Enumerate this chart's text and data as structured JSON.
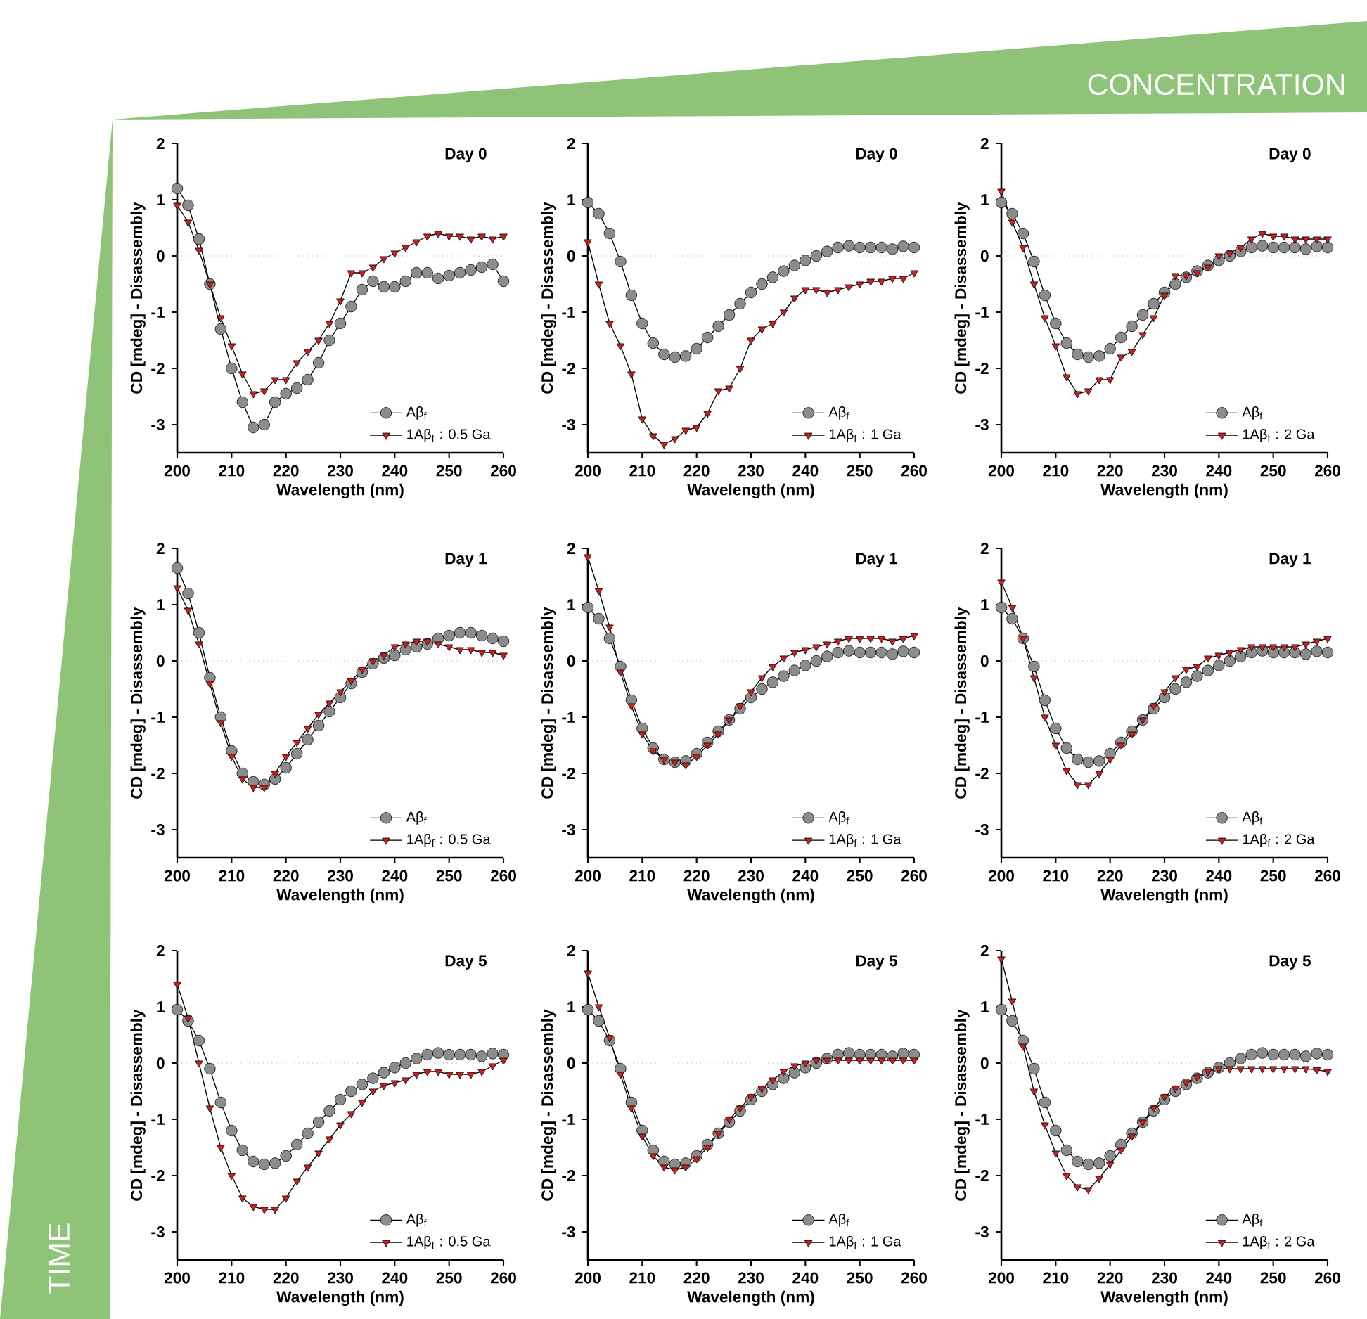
{
  "chart_data": [
    {
      "type": "line",
      "title": "Day 0",
      "xlabel": "Wavelength (nm)",
      "ylabel": "CD [mdeg] - Disassembly",
      "x": [
        200,
        202,
        204,
        206,
        208,
        210,
        212,
        214,
        216,
        218,
        220,
        222,
        224,
        226,
        228,
        230,
        232,
        234,
        236,
        238,
        240,
        242,
        244,
        246,
        248,
        250,
        252,
        254,
        256,
        258,
        260
      ],
      "xlim": [
        200,
        260
      ],
      "xticks": [
        200,
        210,
        220,
        230,
        240,
        250,
        260
      ],
      "ylim": [
        -3.5,
        2
      ],
      "yticks": [
        -3,
        -2,
        -1,
        0,
        1,
        2
      ],
      "legend": "bottom right",
      "ref_lines": [
        {
          "axis": "y",
          "value": 0,
          "color": "#b0b0b0",
          "line_style": "dotted"
        }
      ],
      "series": [
        {
          "name": "Aβ$_{f}$",
          "color": "#8c8c8c",
          "marker": "circle",
          "values": [
            1.2,
            0.9,
            0.3,
            -0.5,
            -1.3,
            -2.0,
            -2.6,
            -3.05,
            -3.0,
            -2.6,
            -2.45,
            -2.35,
            -2.2,
            -1.9,
            -1.5,
            -1.2,
            -0.9,
            -0.6,
            -0.45,
            -0.55,
            -0.55,
            -0.45,
            -0.3,
            -0.3,
            -0.4,
            -0.35,
            -0.3,
            -0.25,
            -0.2,
            -0.15,
            -0.45
          ]
        },
        {
          "name": "1Aβ$_{f}$ : 0.5 Ga",
          "color": "#cc1f1f",
          "marker": "triangle",
          "values": [
            0.9,
            0.6,
            0.1,
            -0.5,
            -1.1,
            -1.6,
            -2.1,
            -2.45,
            -2.4,
            -2.2,
            -2.2,
            -1.9,
            -1.7,
            -1.5,
            -1.2,
            -0.8,
            -0.3,
            -0.3,
            -0.2,
            -0.05,
            0.05,
            0.15,
            0.25,
            0.35,
            0.4,
            0.35,
            0.35,
            0.3,
            0.35,
            0.3,
            0.35
          ]
        }
      ]
    },
    {
      "type": "line",
      "title": "Day 0",
      "xlabel": "Wavelength (nm)",
      "ylabel": "CD [mdeg] - Disassembly",
      "x": [
        200,
        202,
        204,
        206,
        208,
        210,
        212,
        214,
        216,
        218,
        220,
        222,
        224,
        226,
        228,
        230,
        232,
        234,
        236,
        238,
        240,
        242,
        244,
        246,
        248,
        250,
        252,
        254,
        256,
        258,
        260
      ],
      "xlim": [
        200,
        260
      ],
      "xticks": [
        200,
        210,
        220,
        230,
        240,
        250,
        260
      ],
      "ylim": [
        -3.5,
        2
      ],
      "yticks": [
        -3,
        -2,
        -1,
        0,
        1,
        2
      ],
      "legend": "bottom right",
      "ref_lines": [
        {
          "axis": "y",
          "value": 0,
          "color": "#b0b0b0",
          "line_style": "dotted"
        }
      ],
      "series": [
        {
          "name": "Aβ$_{f}$",
          "color": "#8c8c8c",
          "marker": "circle",
          "values": [
            0.95,
            0.75,
            0.4,
            -0.1,
            -0.7,
            -1.2,
            -1.55,
            -1.75,
            -1.8,
            -1.78,
            -1.65,
            -1.45,
            -1.25,
            -1.05,
            -0.85,
            -0.65,
            -0.5,
            -0.38,
            -0.27,
            -0.17,
            -0.08,
            0.0,
            0.08,
            0.15,
            0.18,
            0.15,
            0.15,
            0.15,
            0.12,
            0.17,
            0.15
          ]
        },
        {
          "name": "1Aβ$_{f}$ : 1 Ga",
          "color": "#cc1f1f",
          "marker": "triangle",
          "values": [
            0.25,
            -0.5,
            -1.2,
            -1.6,
            -2.1,
            -2.9,
            -3.2,
            -3.35,
            -3.25,
            -3.1,
            -3.05,
            -2.8,
            -2.4,
            -2.35,
            -2.0,
            -1.5,
            -1.3,
            -1.2,
            -1.0,
            -0.75,
            -0.6,
            -0.6,
            -0.65,
            -0.6,
            -0.55,
            -0.5,
            -0.45,
            -0.45,
            -0.4,
            -0.4,
            -0.3
          ]
        }
      ]
    },
    {
      "type": "line",
      "title": "Day 0",
      "xlabel": "Wavelength (nm)",
      "ylabel": "CD [mdeg] - Disassembly",
      "x": [
        200,
        202,
        204,
        206,
        208,
        210,
        212,
        214,
        216,
        218,
        220,
        222,
        224,
        226,
        228,
        230,
        232,
        234,
        236,
        238,
        240,
        242,
        244,
        246,
        248,
        250,
        252,
        254,
        256,
        258,
        260
      ],
      "xlim": [
        200,
        260
      ],
      "xticks": [
        200,
        210,
        220,
        230,
        240,
        250,
        260
      ],
      "ylim": [
        -3.5,
        2
      ],
      "yticks": [
        -3,
        -2,
        -1,
        0,
        1,
        2
      ],
      "legend": "bottom right",
      "ref_lines": [
        {
          "axis": "y",
          "value": 0,
          "color": "#b0b0b0",
          "line_style": "dotted"
        }
      ],
      "series": [
        {
          "name": "Aβ$_{f}$",
          "color": "#8c8c8c",
          "marker": "circle",
          "values": [
            0.95,
            0.75,
            0.4,
            -0.1,
            -0.7,
            -1.2,
            -1.55,
            -1.75,
            -1.8,
            -1.78,
            -1.65,
            -1.45,
            -1.25,
            -1.05,
            -0.85,
            -0.65,
            -0.5,
            -0.38,
            -0.27,
            -0.17,
            -0.08,
            0.0,
            0.08,
            0.15,
            0.18,
            0.15,
            0.15,
            0.15,
            0.12,
            0.17,
            0.15
          ]
        },
        {
          "name": "1Aβ$_{f}$ : 2 Ga",
          "color": "#cc1f1f",
          "marker": "triangle",
          "values": [
            1.15,
            0.6,
            0.15,
            -0.5,
            -1.1,
            -1.6,
            -2.15,
            -2.45,
            -2.4,
            -2.2,
            -2.2,
            -1.8,
            -1.7,
            -1.4,
            -1.1,
            -0.7,
            -0.35,
            -0.35,
            -0.3,
            -0.2,
            0.0,
            0.05,
            0.15,
            0.3,
            0.4,
            0.35,
            0.35,
            0.3,
            0.3,
            0.3,
            0.3
          ]
        }
      ]
    },
    {
      "type": "line",
      "title": "Day 1",
      "xlabel": "Wavelength (nm)",
      "ylabel": "CD [mdeg] - Disassembly",
      "x": [
        200,
        202,
        204,
        206,
        208,
        210,
        212,
        214,
        216,
        218,
        220,
        222,
        224,
        226,
        228,
        230,
        232,
        234,
        236,
        238,
        240,
        242,
        244,
        246,
        248,
        250,
        252,
        254,
        256,
        258,
        260
      ],
      "xlim": [
        200,
        260
      ],
      "xticks": [
        200,
        210,
        220,
        230,
        240,
        250,
        260
      ],
      "ylim": [
        -3.5,
        2
      ],
      "yticks": [
        -3,
        -2,
        -1,
        0,
        1,
        2
      ],
      "legend": "bottom right",
      "ref_lines": [
        {
          "axis": "y",
          "value": 0,
          "color": "#b0b0b0",
          "line_style": "dotted"
        }
      ],
      "series": [
        {
          "name": "Aβ$_{f}$",
          "color": "#8c8c8c",
          "marker": "circle",
          "values": [
            1.65,
            1.2,
            0.5,
            -0.3,
            -1.0,
            -1.6,
            -2.0,
            -2.15,
            -2.2,
            -2.1,
            -1.9,
            -1.65,
            -1.4,
            -1.15,
            -0.9,
            -0.65,
            -0.4,
            -0.2,
            -0.05,
            0.05,
            0.1,
            0.2,
            0.25,
            0.3,
            0.4,
            0.45,
            0.5,
            0.5,
            0.45,
            0.4,
            0.35
          ]
        },
        {
          "name": "1Aβ$_{f}$ : 0.5 Ga",
          "color": "#cc1f1f",
          "marker": "triangle",
          "values": [
            1.3,
            0.9,
            0.3,
            -0.4,
            -1.1,
            -1.7,
            -2.1,
            -2.25,
            -2.25,
            -2.0,
            -1.7,
            -1.45,
            -1.2,
            -0.95,
            -0.75,
            -0.55,
            -0.35,
            -0.15,
            0.0,
            0.1,
            0.25,
            0.3,
            0.35,
            0.35,
            0.3,
            0.25,
            0.2,
            0.2,
            0.15,
            0.15,
            0.1
          ]
        }
      ]
    },
    {
      "type": "line",
      "title": "Day 1",
      "xlabel": "Wavelength (nm)",
      "ylabel": "CD [mdeg] - Disassembly",
      "x": [
        200,
        202,
        204,
        206,
        208,
        210,
        212,
        214,
        216,
        218,
        220,
        222,
        224,
        226,
        228,
        230,
        232,
        234,
        236,
        238,
        240,
        242,
        244,
        246,
        248,
        250,
        252,
        254,
        256,
        258,
        260
      ],
      "xlim": [
        200,
        260
      ],
      "xticks": [
        200,
        210,
        220,
        230,
        240,
        250,
        260
      ],
      "ylim": [
        -3.5,
        2
      ],
      "yticks": [
        -3,
        -2,
        -1,
        0,
        1,
        2
      ],
      "legend": "bottom right",
      "ref_lines": [
        {
          "axis": "y",
          "value": 0,
          "color": "#b0b0b0",
          "line_style": "dotted"
        }
      ],
      "series": [
        {
          "name": "Aβ$_{f}$",
          "color": "#8c8c8c",
          "marker": "circle",
          "values": [
            0.95,
            0.75,
            0.4,
            -0.1,
            -0.7,
            -1.2,
            -1.55,
            -1.75,
            -1.8,
            -1.78,
            -1.65,
            -1.45,
            -1.25,
            -1.05,
            -0.85,
            -0.65,
            -0.5,
            -0.38,
            -0.27,
            -0.17,
            -0.08,
            0.0,
            0.08,
            0.15,
            0.18,
            0.15,
            0.15,
            0.15,
            0.12,
            0.17,
            0.15
          ]
        },
        {
          "name": "1Aβ$_{f}$ : 1 Ga",
          "color": "#cc1f1f",
          "marker": "triangle",
          "values": [
            1.85,
            1.25,
            0.6,
            -0.2,
            -0.8,
            -1.3,
            -1.6,
            -1.75,
            -1.8,
            -1.85,
            -1.7,
            -1.5,
            -1.3,
            -1.05,
            -0.8,
            -0.55,
            -0.3,
            -0.1,
            0.05,
            0.15,
            0.2,
            0.25,
            0.3,
            0.35,
            0.4,
            0.4,
            0.4,
            0.4,
            0.35,
            0.4,
            0.45
          ]
        }
      ]
    },
    {
      "type": "line",
      "title": "Day 1",
      "xlabel": "Wavelength (nm)",
      "ylabel": "CD [mdeg] - Disassembly",
      "x": [
        200,
        202,
        204,
        206,
        208,
        210,
        212,
        214,
        216,
        218,
        220,
        222,
        224,
        226,
        228,
        230,
        232,
        234,
        236,
        238,
        240,
        242,
        244,
        246,
        248,
        250,
        252,
        254,
        256,
        258,
        260
      ],
      "xlim": [
        200,
        260
      ],
      "xticks": [
        200,
        210,
        220,
        230,
        240,
        250,
        260
      ],
      "ylim": [
        -3.5,
        2
      ],
      "yticks": [
        -3,
        -2,
        -1,
        0,
        1,
        2
      ],
      "legend": "bottom right",
      "ref_lines": [
        {
          "axis": "y",
          "value": 0,
          "color": "#b0b0b0",
          "line_style": "dotted"
        }
      ],
      "series": [
        {
          "name": "Aβ$_{f}$",
          "color": "#8c8c8c",
          "marker": "circle",
          "values": [
            0.95,
            0.75,
            0.4,
            -0.1,
            -0.7,
            -1.2,
            -1.55,
            -1.75,
            -1.8,
            -1.78,
            -1.65,
            -1.45,
            -1.25,
            -1.05,
            -0.85,
            -0.65,
            -0.5,
            -0.38,
            -0.27,
            -0.17,
            -0.08,
            0.0,
            0.08,
            0.15,
            0.18,
            0.15,
            0.15,
            0.15,
            0.12,
            0.17,
            0.15
          ]
        },
        {
          "name": "1Aβ$_{f}$ : 2 Ga",
          "color": "#cc1f1f",
          "marker": "triangle",
          "values": [
            1.4,
            0.95,
            0.4,
            -0.3,
            -1.0,
            -1.5,
            -1.95,
            -2.2,
            -2.2,
            -2.0,
            -1.75,
            -1.5,
            -1.3,
            -1.05,
            -0.8,
            -0.55,
            -0.3,
            -0.15,
            -0.1,
            0.05,
            0.1,
            0.15,
            0.2,
            0.25,
            0.25,
            0.25,
            0.25,
            0.25,
            0.3,
            0.35,
            0.4
          ]
        }
      ]
    },
    {
      "type": "line",
      "title": "Day 5",
      "xlabel": "Wavelength (nm)",
      "ylabel": "CD [mdeg] - Disassembly",
      "x": [
        200,
        202,
        204,
        206,
        208,
        210,
        212,
        214,
        216,
        218,
        220,
        222,
        224,
        226,
        228,
        230,
        232,
        234,
        236,
        238,
        240,
        242,
        244,
        246,
        248,
        250,
        252,
        254,
        256,
        258,
        260
      ],
      "xlim": [
        200,
        260
      ],
      "xticks": [
        200,
        210,
        220,
        230,
        240,
        250,
        260
      ],
      "ylim": [
        -3.5,
        2
      ],
      "yticks": [
        -3,
        -2,
        -1,
        0,
        1,
        2
      ],
      "legend": "bottom right",
      "ref_lines": [
        {
          "axis": "y",
          "value": 0,
          "color": "#b0b0b0",
          "line_style": "dotted"
        }
      ],
      "series": [
        {
          "name": "Aβ$_{f}$",
          "color": "#8c8c8c",
          "marker": "circle",
          "values": [
            0.95,
            0.75,
            0.4,
            -0.1,
            -0.7,
            -1.2,
            -1.55,
            -1.75,
            -1.8,
            -1.78,
            -1.65,
            -1.45,
            -1.25,
            -1.05,
            -0.85,
            -0.65,
            -0.5,
            -0.38,
            -0.27,
            -0.17,
            -0.08,
            0.0,
            0.08,
            0.15,
            0.18,
            0.15,
            0.15,
            0.15,
            0.12,
            0.17,
            0.15
          ]
        },
        {
          "name": "1Aβ$_{f}$ : 0.5 Ga",
          "color": "#cc1f1f",
          "marker": "triangle",
          "values": [
            1.4,
            0.8,
            0.0,
            -0.8,
            -1.5,
            -2.0,
            -2.4,
            -2.55,
            -2.6,
            -2.6,
            -2.4,
            -2.1,
            -1.85,
            -1.6,
            -1.35,
            -1.1,
            -0.9,
            -0.7,
            -0.5,
            -0.4,
            -0.35,
            -0.3,
            -0.2,
            -0.15,
            -0.15,
            -0.2,
            -0.2,
            -0.2,
            -0.15,
            -0.05,
            0.05
          ]
        }
      ]
    },
    {
      "type": "line",
      "title": "Day 5",
      "xlabel": "Wavelength (nm)",
      "ylabel": "CD [mdeg] - Disassembly",
      "x": [
        200,
        202,
        204,
        206,
        208,
        210,
        212,
        214,
        216,
        218,
        220,
        222,
        224,
        226,
        228,
        230,
        232,
        234,
        236,
        238,
        240,
        242,
        244,
        246,
        248,
        250,
        252,
        254,
        256,
        258,
        260
      ],
      "xlim": [
        200,
        260
      ],
      "xticks": [
        200,
        210,
        220,
        230,
        240,
        250,
        260
      ],
      "ylim": [
        -3.5,
        2
      ],
      "yticks": [
        -3,
        -2,
        -1,
        0,
        1,
        2
      ],
      "legend": "bottom right",
      "ref_lines": [
        {
          "axis": "y",
          "value": 0,
          "color": "#b0b0b0",
          "line_style": "dotted"
        }
      ],
      "series": [
        {
          "name": "Aβ$_{f}$",
          "color": "#8c8c8c",
          "marker": "circle",
          "values": [
            0.95,
            0.75,
            0.4,
            -0.1,
            -0.7,
            -1.2,
            -1.55,
            -1.75,
            -1.8,
            -1.78,
            -1.65,
            -1.45,
            -1.25,
            -1.05,
            -0.85,
            -0.65,
            -0.5,
            -0.38,
            -0.27,
            -0.17,
            -0.08,
            0.0,
            0.08,
            0.15,
            0.18,
            0.15,
            0.15,
            0.15,
            0.12,
            0.17,
            0.15
          ]
        },
        {
          "name": "1Aβ$_{f}$ : 1 Ga",
          "color": "#cc1f1f",
          "marker": "triangle",
          "values": [
            1.6,
            1.0,
            0.45,
            -0.2,
            -0.8,
            -1.3,
            -1.65,
            -1.85,
            -1.9,
            -1.85,
            -1.7,
            -1.5,
            -1.25,
            -1.0,
            -0.8,
            -0.6,
            -0.45,
            -0.3,
            -0.15,
            -0.05,
            0.0,
            0.05,
            0.05,
            0.05,
            0.05,
            0.05,
            0.05,
            0.05,
            0.05,
            0.05,
            0.05
          ]
        }
      ]
    },
    {
      "type": "line",
      "title": "Day 5",
      "xlabel": "Wavelength (nm)",
      "ylabel": "CD [mdeg] - Disassembly",
      "x": [
        200,
        202,
        204,
        206,
        208,
        210,
        212,
        214,
        216,
        218,
        220,
        222,
        224,
        226,
        228,
        230,
        232,
        234,
        236,
        238,
        240,
        242,
        244,
        246,
        248,
        250,
        252,
        254,
        256,
        258,
        260
      ],
      "xlim": [
        200,
        260
      ],
      "xticks": [
        200,
        210,
        220,
        230,
        240,
        250,
        260
      ],
      "ylim": [
        -3.5,
        2
      ],
      "yticks": [
        -3,
        -2,
        -1,
        0,
        1,
        2
      ],
      "legend": "bottom right",
      "ref_lines": [
        {
          "axis": "y",
          "value": 0,
          "color": "#b0b0b0",
          "line_style": "dotted"
        }
      ],
      "series": [
        {
          "name": "Aβ$_{f}$",
          "color": "#8c8c8c",
          "marker": "circle",
          "values": [
            0.95,
            0.75,
            0.4,
            -0.1,
            -0.7,
            -1.2,
            -1.55,
            -1.75,
            -1.8,
            -1.78,
            -1.65,
            -1.45,
            -1.25,
            -1.05,
            -0.85,
            -0.65,
            -0.5,
            -0.38,
            -0.27,
            -0.17,
            -0.08,
            0.0,
            0.08,
            0.15,
            0.18,
            0.15,
            0.15,
            0.15,
            0.12,
            0.17,
            0.15
          ]
        },
        {
          "name": "1Aβ$_{f}$ : 2 Ga",
          "color": "#cc1f1f",
          "marker": "triangle",
          "values": [
            1.85,
            1.1,
            0.3,
            -0.5,
            -1.1,
            -1.6,
            -2.0,
            -2.2,
            -2.25,
            -2.05,
            -1.8,
            -1.55,
            -1.3,
            -1.05,
            -0.8,
            -0.6,
            -0.45,
            -0.35,
            -0.25,
            -0.15,
            -0.1,
            -0.1,
            -0.1,
            -0.1,
            -0.1,
            -0.1,
            -0.1,
            -0.1,
            -0.1,
            -0.12,
            -0.15
          ]
        }
      ]
    },
    {
      "type": "other",
      "annotations": [
        "CONCENTRATION",
        "TIME"
      ]
    }
  ]
}
